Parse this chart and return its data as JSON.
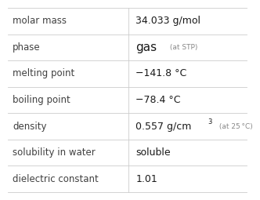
{
  "rows": [
    {
      "label": "molar mass",
      "value": "34.033 g/mol",
      "value2": null,
      "sup": null,
      "note": null
    },
    {
      "label": "phase",
      "value": "gas",
      "value2": " (at STP)",
      "sup": null,
      "note": null
    },
    {
      "label": "melting point",
      "value": "−141.8 °C",
      "value2": null,
      "sup": null,
      "note": null
    },
    {
      "label": "boiling point",
      "value": "−78.4 °C",
      "value2": null,
      "sup": null,
      "note": null
    },
    {
      "label": "density",
      "value": "0.557 g/cm",
      "value2": " (at 25 °C)",
      "sup": "3",
      "note": null
    },
    {
      "label": "solubility in water",
      "value": "soluble",
      "value2": null,
      "sup": null,
      "note": null
    },
    {
      "label": "dielectric constant",
      "value": "1.01",
      "value2": null,
      "sup": null,
      "note": null
    }
  ],
  "col_split": 0.505,
  "bg_color": "#ffffff",
  "label_color": "#404040",
  "value_color": "#1a1a1a",
  "extra_color": "#888888",
  "line_color": "#cccccc",
  "label_fontsize": 8.5,
  "value_fontsize": 9.0,
  "extra_fontsize": 6.5,
  "sup_fontsize": 6.0
}
